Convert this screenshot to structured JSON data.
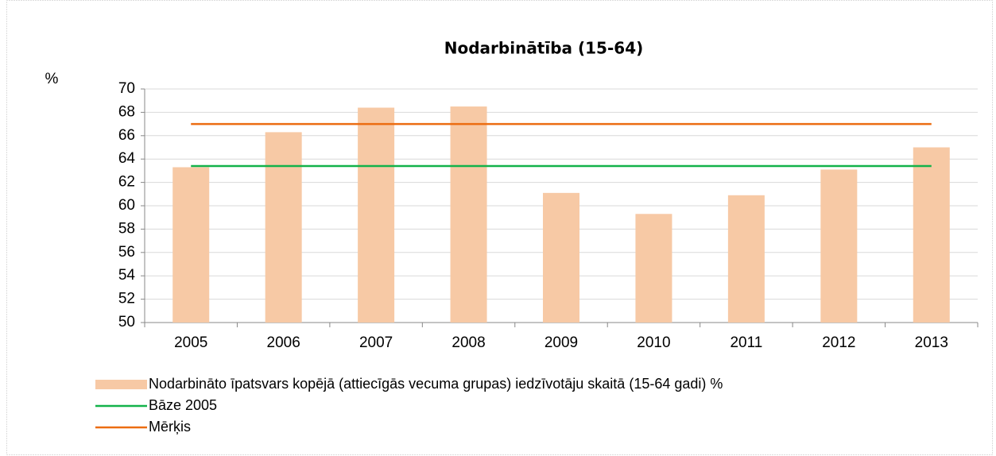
{
  "chart_data": {
    "type": "bar",
    "title": "Nodarbinātība (15-64)",
    "y_label": "%",
    "categories": [
      "2005",
      "2006",
      "2007",
      "2008",
      "2009",
      "2010",
      "2011",
      "2012",
      "2013"
    ],
    "series": [
      {
        "name": "Nodarbināto īpatsvars kopējā (attiecīgās vecuma grupas) iedzīvotāju skaitā (15-64 gadi) %",
        "type": "bar",
        "color": "#f7c9a5",
        "values": [
          63.3,
          66.3,
          68.4,
          68.5,
          61.1,
          59.3,
          60.9,
          63.1,
          65.0
        ]
      },
      {
        "name": "Bāze 2005",
        "type": "line",
        "color": "#13b24a",
        "values": [
          63.4,
          63.4,
          63.4,
          63.4,
          63.4,
          63.4,
          63.4,
          63.4,
          63.4
        ]
      },
      {
        "name": "Mērķis",
        "type": "line",
        "color": "#ec6d12",
        "values": [
          67.0,
          67.0,
          67.0,
          67.0,
          67.0,
          67.0,
          67.0,
          67.0,
          67.0
        ]
      }
    ],
    "ylim": [
      50,
      70
    ],
    "yticks": [
      50,
      52,
      54,
      56,
      58,
      60,
      62,
      64,
      66,
      68,
      70
    ],
    "grid": true
  }
}
